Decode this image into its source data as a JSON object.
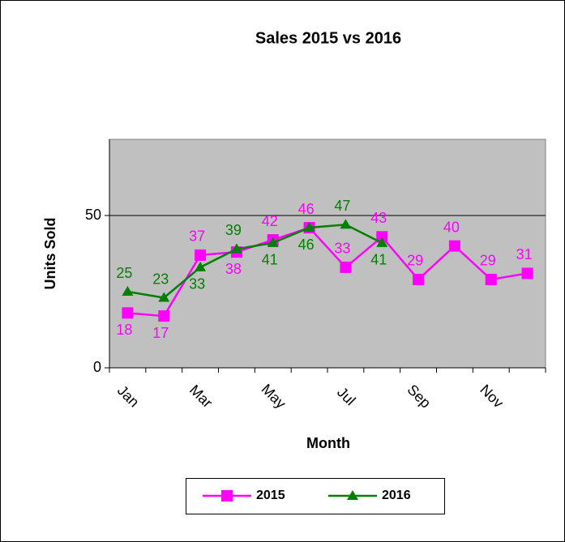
{
  "chart_data": {
    "type": "line",
    "title": "Sales 2015 vs 2016",
    "x_label": "Month",
    "y_label": "Units Sold",
    "categories": [
      "Jan",
      null,
      "Mar",
      null,
      "May",
      null,
      "Jul",
      null,
      "Sep",
      null,
      "Nov",
      null
    ],
    "series": [
      {
        "name": "2015",
        "color": "#ff00ff",
        "marker": "square",
        "values": [
          18,
          17,
          37,
          38,
          42,
          46,
          33,
          43,
          29,
          40,
          29,
          31
        ]
      },
      {
        "name": "2016",
        "color": "#008000",
        "marker": "triangle",
        "values": [
          25,
          23,
          33,
          39,
          41,
          46,
          47,
          41,
          null,
          null,
          null,
          null
        ]
      }
    ],
    "ylim": [
      0,
      75
    ],
    "yticks": [
      0,
      50
    ],
    "grid": true,
    "legend": "bottom",
    "plot_background": "#c0c0c0"
  }
}
